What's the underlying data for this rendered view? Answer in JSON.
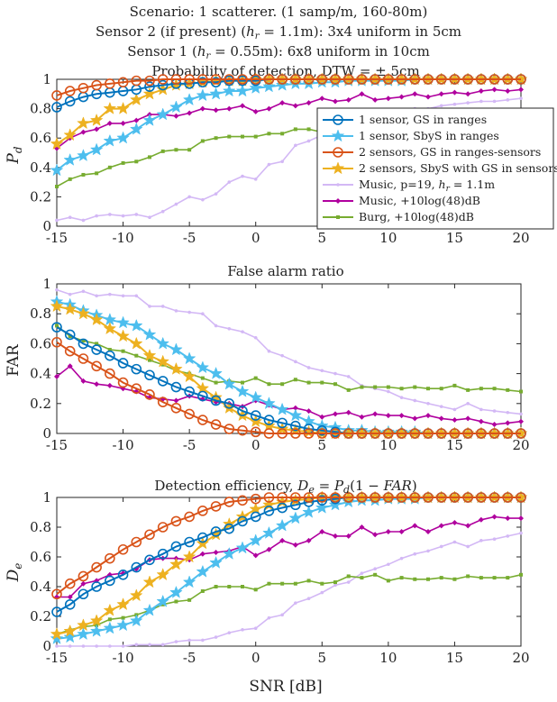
{
  "colors": {
    "blue": "#0072BD",
    "cyan": "#4DBEEE",
    "orange": "#D95319",
    "yellow": "#EDB120",
    "lilac": "#D3B8F5",
    "magenta": "#B0009E",
    "green": "#77AC30"
  },
  "header_lines": [
    "Scenario: 1 scatterer. (1 samp/m, 160-80m)",
    "Sensor 2 (if present) (h_r = 1.1m): 3x4 uniform in 5cm",
    "Sensor 1 (h_r = 0.55m): 6x8 uniform in 10cm",
    "Probability of detection, DTW = ± 5cm"
  ],
  "chart_data": [
    {
      "type": "line",
      "title": "Probability of detection, DTW = ± 5cm",
      "xlabel": "",
      "ylabel": "P_d",
      "xlim": [
        -15,
        20
      ],
      "ylim": [
        0,
        1
      ],
      "xticks": [
        "-15",
        "-10",
        "-5",
        "0",
        "5",
        "10",
        "15",
        "20"
      ],
      "yticks": [
        "0",
        "0.2",
        "0.4",
        "0.6",
        "0.8",
        "1"
      ],
      "grid": true,
      "legend_position": "inside-right",
      "x": [
        -15,
        -14,
        -13,
        -12,
        -11,
        -10,
        -9,
        -8,
        -7,
        -6,
        -5,
        -4,
        -3,
        -2,
        -1,
        0,
        1,
        2,
        3,
        4,
        5,
        6,
        7,
        8,
        9,
        10,
        11,
        12,
        13,
        14,
        15,
        16,
        17,
        18,
        19,
        20
      ],
      "series": [
        {
          "name": "1 sensor, GS in ranges",
          "color": "blue",
          "marker": "circle",
          "values": [
            0.81,
            0.85,
            0.88,
            0.9,
            0.91,
            0.92,
            0.93,
            0.95,
            0.96,
            0.97,
            0.97,
            0.98,
            0.98,
            0.99,
            0.99,
            0.99,
            1,
            1,
            1,
            1,
            1,
            1,
            1,
            1,
            1,
            1,
            1,
            1,
            1,
            1,
            1,
            1,
            1,
            1,
            1,
            1
          ]
        },
        {
          "name": "1 sensor, SbyS in ranges",
          "color": "cyan",
          "marker": "star",
          "values": [
            0.38,
            0.45,
            0.48,
            0.52,
            0.58,
            0.6,
            0.66,
            0.72,
            0.76,
            0.81,
            0.86,
            0.89,
            0.9,
            0.92,
            0.92,
            0.94,
            0.95,
            0.96,
            0.97,
            0.97,
            0.98,
            0.98,
            0.99,
            0.99,
            0.99,
            0.99,
            0.99,
            1,
            1,
            1,
            1,
            1,
            1,
            1,
            1,
            1
          ]
        },
        {
          "name": "2 sensors, GS in ranges-sensors",
          "color": "orange",
          "marker": "circle",
          "values": [
            0.89,
            0.92,
            0.94,
            0.96,
            0.97,
            0.98,
            0.99,
            0.99,
            1,
            1,
            1,
            1,
            1,
            1,
            1,
            1,
            1,
            1,
            1,
            1,
            1,
            1,
            1,
            1,
            1,
            1,
            1,
            1,
            1,
            1,
            1,
            1,
            1,
            1,
            1,
            1
          ]
        },
        {
          "name": "2 sensors, SbyS with GS in sensors",
          "color": "yellow",
          "marker": "star",
          "values": [
            0.56,
            0.62,
            0.7,
            0.72,
            0.8,
            0.8,
            0.86,
            0.9,
            0.93,
            0.96,
            0.97,
            0.98,
            0.99,
            0.99,
            0.99,
            1,
            1,
            1,
            1,
            1,
            1,
            1,
            1,
            1,
            1,
            1,
            1,
            1,
            1,
            1,
            1,
            1,
            1,
            1,
            1,
            1
          ]
        },
        {
          "name": "Music, p=19, h_r = 1.1m",
          "color": "lilac",
          "marker": "dot",
          "values": [
            0.04,
            0.06,
            0.04,
            0.07,
            0.08,
            0.07,
            0.08,
            0.06,
            0.1,
            0.15,
            0.2,
            0.18,
            0.22,
            0.3,
            0.34,
            0.32,
            0.42,
            0.44,
            0.55,
            0.58,
            0.62,
            0.68,
            0.7,
            0.72,
            0.74,
            0.76,
            0.78,
            0.8,
            0.8,
            0.82,
            0.83,
            0.84,
            0.85,
            0.85,
            0.86,
            0.87
          ]
        },
        {
          "name": "Music, +10log(48)dB",
          "color": "magenta",
          "marker": "diamond",
          "values": [
            0.53,
            0.6,
            0.64,
            0.66,
            0.7,
            0.7,
            0.72,
            0.76,
            0.76,
            0.75,
            0.77,
            0.8,
            0.79,
            0.8,
            0.82,
            0.78,
            0.8,
            0.84,
            0.82,
            0.84,
            0.87,
            0.85,
            0.86,
            0.9,
            0.86,
            0.87,
            0.88,
            0.9,
            0.88,
            0.9,
            0.91,
            0.9,
            0.92,
            0.93,
            0.92,
            0.93
          ]
        },
        {
          "name": "Burg, +10log(48)dB",
          "color": "green",
          "marker": "square",
          "values": [
            0.27,
            0.32,
            0.35,
            0.36,
            0.4,
            0.43,
            0.44,
            0.47,
            0.51,
            0.52,
            0.52,
            0.58,
            0.6,
            0.61,
            0.61,
            0.61,
            0.63,
            0.63,
            0.66,
            0.66,
            0.64,
            0.64,
            0.66,
            0.66,
            0.7,
            0.64,
            0.65,
            0.65,
            0.64,
            0.65,
            0.66,
            0.66,
            0.66,
            0.66,
            0.65,
            0.66
          ]
        }
      ]
    },
    {
      "type": "line",
      "title": "False alarm ratio",
      "xlabel": "",
      "ylabel": "FAR",
      "xlim": [
        -15,
        20
      ],
      "ylim": [
        0,
        1
      ],
      "xticks": [
        "-15",
        "-10",
        "-5",
        "0",
        "5",
        "10",
        "15",
        "20"
      ],
      "yticks": [
        "0",
        "0.2",
        "0.4",
        "0.6",
        "0.8",
        "1"
      ],
      "grid": true,
      "x": [
        -15,
        -14,
        -13,
        -12,
        -11,
        -10,
        -9,
        -8,
        -7,
        -6,
        -5,
        -4,
        -3,
        -2,
        -1,
        0,
        1,
        2,
        3,
        4,
        5,
        6,
        7,
        8,
        9,
        10,
        11,
        12,
        13,
        14,
        15,
        16,
        17,
        18,
        19,
        20
      ],
      "series": [
        {
          "name": "1 sensor, GS in ranges",
          "color": "blue",
          "marker": "circle",
          "values": [
            0.71,
            0.66,
            0.6,
            0.56,
            0.52,
            0.47,
            0.43,
            0.39,
            0.35,
            0.31,
            0.28,
            0.25,
            0.22,
            0.2,
            0.15,
            0.12,
            0.09,
            0.07,
            0.05,
            0.03,
            0.02,
            0.01,
            0,
            0,
            0,
            0,
            0,
            0,
            0,
            0,
            0,
            0,
            0,
            0,
            0,
            0
          ]
        },
        {
          "name": "1 sensor, SbyS in ranges",
          "color": "cyan",
          "marker": "star",
          "values": [
            0.88,
            0.86,
            0.82,
            0.79,
            0.76,
            0.74,
            0.72,
            0.66,
            0.6,
            0.56,
            0.5,
            0.44,
            0.4,
            0.33,
            0.28,
            0.24,
            0.2,
            0.16,
            0.12,
            0.08,
            0.05,
            0.04,
            0.02,
            0.02,
            0.01,
            0.01,
            0.01,
            0.01,
            0,
            0,
            0,
            0,
            0,
            0,
            0,
            0
          ]
        },
        {
          "name": "2 sensors, GS in ranges-sensors",
          "color": "orange",
          "marker": "circle",
          "values": [
            0.61,
            0.55,
            0.5,
            0.45,
            0.4,
            0.34,
            0.3,
            0.26,
            0.21,
            0.17,
            0.13,
            0.09,
            0.06,
            0.03,
            0.02,
            0.01,
            0,
            0,
            0,
            0,
            0,
            0,
            0,
            0,
            0,
            0,
            0,
            0,
            0,
            0,
            0,
            0,
            0,
            0,
            0,
            0
          ]
        },
        {
          "name": "2 sensors, SbyS with GS in sensors",
          "color": "yellow",
          "marker": "star",
          "values": [
            0.85,
            0.83,
            0.8,
            0.76,
            0.7,
            0.65,
            0.6,
            0.52,
            0.48,
            0.43,
            0.38,
            0.3,
            0.24,
            0.17,
            0.12,
            0.08,
            0.05,
            0.03,
            0.02,
            0.01,
            0,
            0,
            0,
            0,
            0,
            0,
            0,
            0,
            0,
            0,
            0,
            0,
            0,
            0,
            0,
            0
          ]
        },
        {
          "name": "Music, p=19, h_r = 1.1m",
          "color": "lilac",
          "marker": "dot",
          "values": [
            0.96,
            0.93,
            0.95,
            0.92,
            0.93,
            0.92,
            0.92,
            0.85,
            0.85,
            0.82,
            0.81,
            0.8,
            0.72,
            0.7,
            0.68,
            0.64,
            0.55,
            0.52,
            0.48,
            0.44,
            0.42,
            0.4,
            0.38,
            0.32,
            0.3,
            0.28,
            0.24,
            0.22,
            0.2,
            0.18,
            0.16,
            0.2,
            0.16,
            0.15,
            0.14,
            0.13
          ]
        },
        {
          "name": "Music, +10log(48)dB",
          "color": "magenta",
          "marker": "diamond",
          "values": [
            0.38,
            0.45,
            0.35,
            0.33,
            0.32,
            0.3,
            0.28,
            0.24,
            0.23,
            0.22,
            0.25,
            0.23,
            0.21,
            0.2,
            0.18,
            0.22,
            0.19,
            0.16,
            0.17,
            0.15,
            0.11,
            0.13,
            0.14,
            0.11,
            0.13,
            0.12,
            0.12,
            0.1,
            0.12,
            0.1,
            0.09,
            0.1,
            0.08,
            0.06,
            0.07,
            0.08
          ]
        },
        {
          "name": "Burg, +10log(48)dB",
          "color": "green",
          "marker": "square",
          "values": [
            0.72,
            0.65,
            0.62,
            0.6,
            0.56,
            0.55,
            0.52,
            0.49,
            0.46,
            0.42,
            0.4,
            0.37,
            0.34,
            0.35,
            0.34,
            0.37,
            0.33,
            0.33,
            0.36,
            0.34,
            0.34,
            0.33,
            0.29,
            0.31,
            0.31,
            0.31,
            0.3,
            0.31,
            0.3,
            0.3,
            0.32,
            0.29,
            0.3,
            0.3,
            0.29,
            0.28
          ]
        }
      ]
    },
    {
      "type": "line",
      "title": "Detection efficiency, D_e = P_d(1 - FAR)",
      "xlabel": "SNR [dB]",
      "ylabel": "D_e",
      "xlim": [
        -15,
        20
      ],
      "ylim": [
        0,
        1
      ],
      "xticks": [
        "-15",
        "-10",
        "-5",
        "0",
        "5",
        "10",
        "15",
        "20"
      ],
      "yticks": [
        "0",
        "0.2",
        "0.4",
        "0.6",
        "0.8",
        "1"
      ],
      "grid": true,
      "x": [
        -15,
        -14,
        -13,
        -12,
        -11,
        -10,
        -9,
        -8,
        -7,
        -6,
        -5,
        -4,
        -3,
        -2,
        -1,
        0,
        1,
        2,
        3,
        4,
        5,
        6,
        7,
        8,
        9,
        10,
        11,
        12,
        13,
        14,
        15,
        16,
        17,
        18,
        19,
        20
      ],
      "series": [
        {
          "name": "1 sensor, GS in ranges",
          "color": "blue",
          "marker": "circle",
          "values": [
            0.23,
            0.28,
            0.35,
            0.4,
            0.44,
            0.48,
            0.53,
            0.58,
            0.62,
            0.67,
            0.7,
            0.73,
            0.77,
            0.79,
            0.84,
            0.87,
            0.91,
            0.93,
            0.95,
            0.97,
            0.98,
            0.99,
            1,
            1,
            1,
            1,
            1,
            1,
            1,
            1,
            1,
            1,
            1,
            1,
            1,
            1
          ]
        },
        {
          "name": "1 sensor, SbyS in ranges",
          "color": "cyan",
          "marker": "star",
          "values": [
            0.05,
            0.06,
            0.08,
            0.1,
            0.12,
            0.14,
            0.17,
            0.24,
            0.3,
            0.36,
            0.43,
            0.5,
            0.56,
            0.62,
            0.66,
            0.71,
            0.76,
            0.81,
            0.86,
            0.9,
            0.93,
            0.95,
            0.97,
            0.98,
            0.98,
            0.99,
            0.99,
            0.99,
            1,
            1,
            1,
            1,
            1,
            1,
            1,
            1
          ]
        },
        {
          "name": "2 sensors, GS in ranges-sensors",
          "color": "orange",
          "marker": "circle",
          "values": [
            0.35,
            0.42,
            0.47,
            0.53,
            0.59,
            0.65,
            0.7,
            0.75,
            0.8,
            0.84,
            0.87,
            0.91,
            0.94,
            0.97,
            0.98,
            0.99,
            1,
            1,
            1,
            1,
            1,
            1,
            1,
            1,
            1,
            1,
            1,
            1,
            1,
            1,
            1,
            1,
            1,
            1,
            1,
            1
          ]
        },
        {
          "name": "2 sensors, SbyS with GS in sensors",
          "color": "yellow",
          "marker": "star",
          "values": [
            0.08,
            0.1,
            0.14,
            0.17,
            0.24,
            0.28,
            0.34,
            0.43,
            0.48,
            0.55,
            0.6,
            0.69,
            0.75,
            0.82,
            0.87,
            0.92,
            0.95,
            0.97,
            0.98,
            0.99,
            1,
            1,
            1,
            1,
            1,
            1,
            1,
            1,
            1,
            1,
            1,
            1,
            1,
            1,
            1,
            1
          ]
        },
        {
          "name": "Music, p=19, h_r = 1.1m",
          "color": "lilac",
          "marker": "dot",
          "values": [
            0,
            0,
            0,
            0,
            0,
            0,
            0.01,
            0.01,
            0.01,
            0.03,
            0.04,
            0.04,
            0.06,
            0.09,
            0.11,
            0.12,
            0.19,
            0.21,
            0.29,
            0.32,
            0.36,
            0.41,
            0.43,
            0.49,
            0.52,
            0.55,
            0.59,
            0.62,
            0.64,
            0.67,
            0.7,
            0.67,
            0.71,
            0.72,
            0.74,
            0.76
          ]
        },
        {
          "name": "Music, +10log(48)dB",
          "color": "magenta",
          "marker": "diamond",
          "values": [
            0.33,
            0.33,
            0.42,
            0.44,
            0.48,
            0.49,
            0.52,
            0.58,
            0.59,
            0.59,
            0.58,
            0.62,
            0.63,
            0.64,
            0.67,
            0.61,
            0.65,
            0.71,
            0.68,
            0.71,
            0.77,
            0.74,
            0.74,
            0.8,
            0.75,
            0.77,
            0.77,
            0.81,
            0.77,
            0.81,
            0.83,
            0.81,
            0.85,
            0.87,
            0.86,
            0.86
          ]
        },
        {
          "name": "Burg, +10log(48)dB",
          "color": "green",
          "marker": "square",
          "values": [
            0.08,
            0.11,
            0.13,
            0.14,
            0.18,
            0.19,
            0.21,
            0.24,
            0.28,
            0.3,
            0.31,
            0.37,
            0.4,
            0.4,
            0.4,
            0.38,
            0.42,
            0.42,
            0.42,
            0.44,
            0.42,
            0.43,
            0.47,
            0.46,
            0.48,
            0.44,
            0.46,
            0.45,
            0.45,
            0.46,
            0.45,
            0.47,
            0.46,
            0.46,
            0.46,
            0.48
          ]
        }
      ]
    }
  ]
}
